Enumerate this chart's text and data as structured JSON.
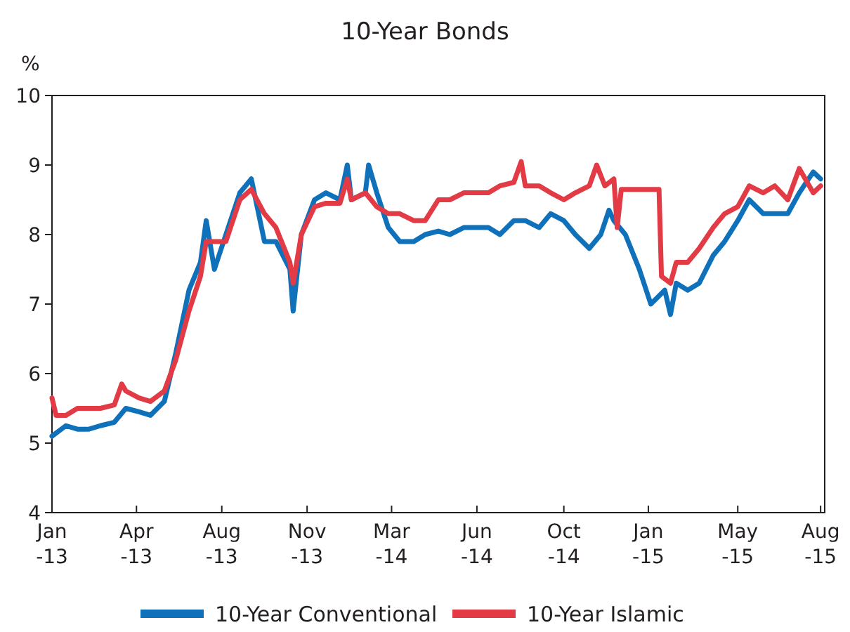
{
  "chart_data": {
    "type": "line",
    "title": "10-Year Bonds",
    "ylabel": "%",
    "xlim": [
      "2013-01-15",
      "2015-08-15"
    ],
    "xticks": [
      {
        "value": "2013-01-15",
        "label": "Jan -13"
      },
      {
        "value": "2013-04-28",
        "label": "Apr -13"
      },
      {
        "value": "2013-08-10",
        "label": "Aug -13"
      },
      {
        "value": "2013-11-22",
        "label": "Nov -13"
      },
      {
        "value": "2014-03-05",
        "label": "Mar -14"
      },
      {
        "value": "2014-06-17",
        "label": "Jun -14"
      },
      {
        "value": "2014-10-01",
        "label": "Oct -14"
      },
      {
        "value": "2015-01-12",
        "label": "Jan -15"
      },
      {
        "value": "2015-05-01",
        "label": "May -15"
      },
      {
        "value": "2015-08-10",
        "label": "Aug -15"
      }
    ],
    "ylim": [
      4,
      10
    ],
    "yticks": [
      4,
      5,
      6,
      7,
      8,
      9,
      10
    ],
    "grid": false,
    "legend": "bottom",
    "line_style": "solid",
    "marker": "none",
    "series": [
      {
        "name": "10-Year Conventional",
        "color": "#1071bb",
        "x": [
          "2013-01-15",
          "2013-02-01",
          "2013-02-15",
          "2013-03-01",
          "2013-03-15",
          "2013-04-01",
          "2013-04-15",
          "2013-05-01",
          "2013-05-15",
          "2013-06-01",
          "2013-06-15",
          "2013-07-01",
          "2013-07-15",
          "2013-07-22",
          "2013-08-01",
          "2013-08-15",
          "2013-09-01",
          "2013-09-15",
          "2013-10-01",
          "2013-10-15",
          "2013-11-01",
          "2013-11-05",
          "2013-11-15",
          "2013-12-01",
          "2013-12-15",
          "2014-01-01",
          "2014-01-10",
          "2014-01-15",
          "2014-02-01",
          "2014-02-05",
          "2014-02-15",
          "2014-03-01",
          "2014-03-15",
          "2014-04-01",
          "2014-04-15",
          "2014-05-01",
          "2014-05-15",
          "2014-06-01",
          "2014-06-15",
          "2014-07-01",
          "2014-07-15",
          "2014-08-01",
          "2014-08-15",
          "2014-09-01",
          "2014-09-15",
          "2014-10-01",
          "2014-10-15",
          "2014-11-01",
          "2014-11-15",
          "2014-11-25",
          "2014-12-01",
          "2014-12-15",
          "2015-01-01",
          "2015-01-15",
          "2015-02-01",
          "2015-02-08",
          "2015-02-15",
          "2015-03-01",
          "2015-03-15",
          "2015-04-01",
          "2015-04-15",
          "2015-05-01",
          "2015-05-15",
          "2015-06-01",
          "2015-06-15",
          "2015-07-01",
          "2015-07-15",
          "2015-08-01",
          "2015-08-10"
        ],
        "values": [
          5.1,
          5.25,
          5.2,
          5.2,
          5.25,
          5.3,
          5.5,
          5.45,
          5.4,
          5.6,
          6.3,
          7.2,
          7.6,
          8.2,
          7.5,
          8.0,
          8.6,
          8.8,
          7.9,
          7.9,
          7.5,
          6.9,
          8.0,
          8.5,
          8.6,
          8.5,
          9.0,
          8.5,
          8.6,
          9.0,
          8.6,
          8.1,
          7.9,
          7.9,
          8.0,
          8.05,
          8.0,
          8.1,
          8.1,
          8.1,
          8.0,
          8.2,
          8.2,
          8.1,
          8.3,
          8.2,
          8.0,
          7.8,
          8.0,
          8.35,
          8.2,
          8.0,
          7.5,
          7.0,
          7.2,
          6.85,
          7.3,
          7.2,
          7.3,
          7.7,
          7.9,
          8.2,
          8.5,
          8.3,
          8.3,
          8.3,
          8.6,
          8.9,
          8.8
        ]
      },
      {
        "name": "10-Year Islamic",
        "color": "#e23b45",
        "x": [
          "2013-01-15",
          "2013-01-20",
          "2013-02-01",
          "2013-02-15",
          "2013-03-01",
          "2013-03-15",
          "2013-04-01",
          "2013-04-10",
          "2013-04-15",
          "2013-05-01",
          "2013-05-15",
          "2013-06-01",
          "2013-06-15",
          "2013-07-01",
          "2013-07-15",
          "2013-07-22",
          "2013-08-01",
          "2013-08-15",
          "2013-09-01",
          "2013-09-15",
          "2013-10-01",
          "2013-10-15",
          "2013-11-01",
          "2013-11-05",
          "2013-11-15",
          "2013-12-01",
          "2013-12-15",
          "2014-01-01",
          "2014-01-10",
          "2014-01-15",
          "2014-02-01",
          "2014-02-15",
          "2014-03-01",
          "2014-03-15",
          "2014-04-01",
          "2014-04-15",
          "2014-05-01",
          "2014-05-15",
          "2014-06-01",
          "2014-06-15",
          "2014-07-01",
          "2014-07-15",
          "2014-08-01",
          "2014-08-10",
          "2014-08-15",
          "2014-09-01",
          "2014-09-15",
          "2014-10-01",
          "2014-10-15",
          "2014-11-01",
          "2014-11-10",
          "2014-11-20",
          "2014-12-01",
          "2014-12-05",
          "2014-12-10",
          "2015-01-01",
          "2015-01-15",
          "2015-01-25",
          "2015-01-28",
          "2015-02-08",
          "2015-02-15",
          "2015-03-01",
          "2015-03-15",
          "2015-04-01",
          "2015-04-15",
          "2015-05-01",
          "2015-05-15",
          "2015-06-01",
          "2015-06-15",
          "2015-07-01",
          "2015-07-15",
          "2015-08-01",
          "2015-08-10"
        ],
        "values": [
          5.65,
          5.4,
          5.4,
          5.5,
          5.5,
          5.5,
          5.55,
          5.85,
          5.75,
          5.65,
          5.6,
          5.75,
          6.2,
          6.9,
          7.4,
          7.9,
          7.9,
          7.9,
          8.5,
          8.65,
          8.3,
          8.1,
          7.6,
          7.3,
          8.0,
          8.4,
          8.45,
          8.45,
          8.8,
          8.5,
          8.6,
          8.4,
          8.3,
          8.3,
          8.2,
          8.2,
          8.5,
          8.5,
          8.6,
          8.6,
          8.6,
          8.7,
          8.75,
          9.05,
          8.7,
          8.7,
          8.6,
          8.5,
          8.6,
          8.7,
          9.0,
          8.7,
          8.8,
          8.1,
          8.65,
          8.65,
          8.65,
          8.65,
          7.4,
          7.3,
          7.6,
          7.6,
          7.8,
          8.1,
          8.3,
          8.4,
          8.7,
          8.6,
          8.7,
          8.5,
          8.95,
          8.6,
          8.7
        ]
      }
    ]
  }
}
